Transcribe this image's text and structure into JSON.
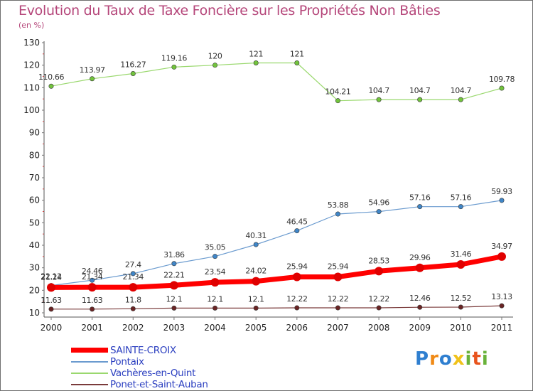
{
  "header": {
    "title": "Evolution du Taux de Taxe Foncière sur les Propriétés Non Bâties",
    "unit": "(en %)"
  },
  "logo": {
    "text": "Proxiti",
    "letters": [
      "P",
      "r",
      "o",
      "x",
      "i",
      "t",
      "i"
    ],
    "colors": [
      "#2f7fd0",
      "#f08a16",
      "#2f7fd0",
      "#f0c21a",
      "#69b23a",
      "#e8541d",
      "#69b23a"
    ]
  },
  "chart_data": {
    "type": "line",
    "categories": [
      "2000",
      "2001",
      "2002",
      "2003",
      "2004",
      "2005",
      "2006",
      "2007",
      "2008",
      "2009",
      "2010",
      "2011"
    ],
    "ylim": [
      10,
      130
    ],
    "yticks": [
      10,
      20,
      30,
      40,
      50,
      60,
      70,
      80,
      90,
      100,
      110,
      120,
      130
    ],
    "grid": false,
    "legend_position": "bottom-left",
    "series": [
      {
        "name": "SAINTE-CROIX",
        "color": "#ff0000",
        "point_color": "#e00000",
        "width": 7,
        "point_radius": 6,
        "values": [
          21.24,
          21.34,
          21.34,
          22.21,
          23.54,
          24.02,
          25.94,
          25.94,
          28.53,
          29.96,
          31.46,
          34.97
        ],
        "labels": [
          "21.24",
          "21.34",
          "21.34",
          "22.21",
          "23.54",
          "24.02",
          "25.94",
          "25.94",
          "28.53",
          "29.96",
          "31.46",
          "34.97"
        ]
      },
      {
        "name": "Pontaix",
        "color": "#6b9bcf",
        "point_color": "#3f86c8",
        "width": 1.2,
        "point_radius": 3.2,
        "values": [
          22.12,
          24.46,
          27.4,
          31.86,
          35.05,
          40.31,
          46.45,
          53.88,
          54.96,
          57.16,
          57.16,
          59.93
        ],
        "labels": [
          "22.12",
          "24.46",
          "27.4",
          "31.86",
          "35.05",
          "40.31",
          "46.45",
          "53.88",
          "54.96",
          "57.16",
          "57.16",
          "59.93"
        ]
      },
      {
        "name": "Vachères-en-Quint",
        "color": "#9ad86e",
        "point_color": "#72c43c",
        "width": 1.2,
        "point_radius": 3.2,
        "values": [
          110.66,
          113.97,
          116.27,
          119.16,
          120,
          121,
          121,
          104.21,
          104.7,
          104.7,
          104.7,
          109.78
        ],
        "labels": [
          "110.66",
          "113.97",
          "116.27",
          "119.16",
          "120",
          "121",
          "121",
          "104.21",
          "104.7",
          "104.7",
          "104.7",
          "109.78"
        ]
      },
      {
        "name": "Ponet-et-Saint-Auban",
        "color": "#7a3b3b",
        "point_color": "#6a2424",
        "width": 1.2,
        "point_radius": 3.2,
        "values": [
          11.63,
          11.63,
          11.8,
          12.1,
          12.1,
          12.1,
          12.22,
          12.22,
          12.22,
          12.46,
          12.52,
          13.13
        ],
        "labels": [
          "11.63",
          "11.63",
          "11.8",
          "12.1",
          "12.1",
          "12.1",
          "12.22",
          "12.22",
          "12.22",
          "12.46",
          "12.52",
          "13.13"
        ]
      }
    ]
  }
}
